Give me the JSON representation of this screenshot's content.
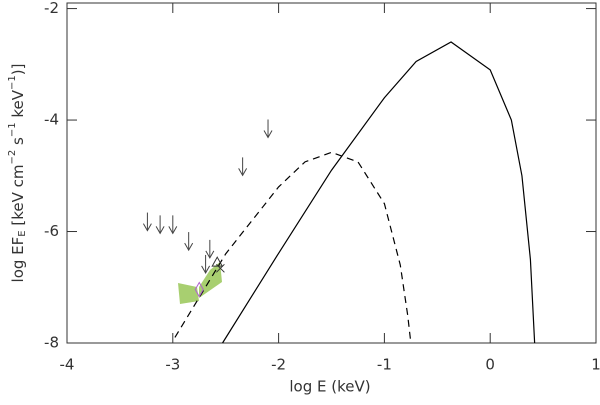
{
  "chart_data": {
    "type": "line",
    "xlabel": "log E  (keV)",
    "ylabel_parts": [
      "log EF",
      "E",
      " [keV cm",
      "−2",
      " s",
      "−1",
      " keV",
      "−1",
      ")]"
    ],
    "xlim": [
      -4,
      1
    ],
    "ylim": [
      -8,
      -1.9
    ],
    "xticks": [
      -4,
      -3,
      -2,
      -1,
      0,
      1
    ],
    "yticks": [
      -8,
      -6,
      -4,
      -2
    ],
    "series": [
      {
        "style": "solid",
        "color": "#000000",
        "x": [
          -2.53,
          -2.0,
          -1.5,
          -1.0,
          -0.7,
          -0.37,
          0.0,
          0.2,
          0.3,
          0.38,
          0.42
        ],
        "values": [
          -8.0,
          -6.39,
          -4.9,
          -3.6,
          -2.95,
          -2.6,
          -3.1,
          -4.0,
          -5.0,
          -6.5,
          -8.0
        ]
      },
      {
        "style": "dashed",
        "color": "#000000",
        "x": [
          -2.98,
          -2.5,
          -2.0,
          -1.75,
          -1.5,
          -1.25,
          -1.0,
          -0.85,
          -0.78,
          -0.75
        ],
        "values": [
          -7.9,
          -6.4,
          -5.2,
          -4.75,
          -4.58,
          -4.75,
          -5.5,
          -6.6,
          -7.5,
          -8.0
        ]
      }
    ],
    "upper_limits": {
      "color": "#444444",
      "x": [
        -3.24,
        -3.12,
        -3.0,
        -2.85,
        -2.69,
        -2.65,
        -2.34,
        -2.1
      ],
      "values": [
        -5.66,
        -5.71,
        -5.71,
        -6.01,
        -6.42,
        -6.15,
        -4.67,
        -3.99
      ]
    },
    "points": [
      {
        "marker": "triangle",
        "color": "#333333",
        "x": -2.58,
        "value": -6.55
      },
      {
        "marker": "cross",
        "color": "#333333",
        "x": -2.55,
        "value": -6.66
      },
      {
        "marker": "diamond",
        "color": "#b060d0",
        "x": -2.75,
        "value": -7.04
      }
    ]
  }
}
